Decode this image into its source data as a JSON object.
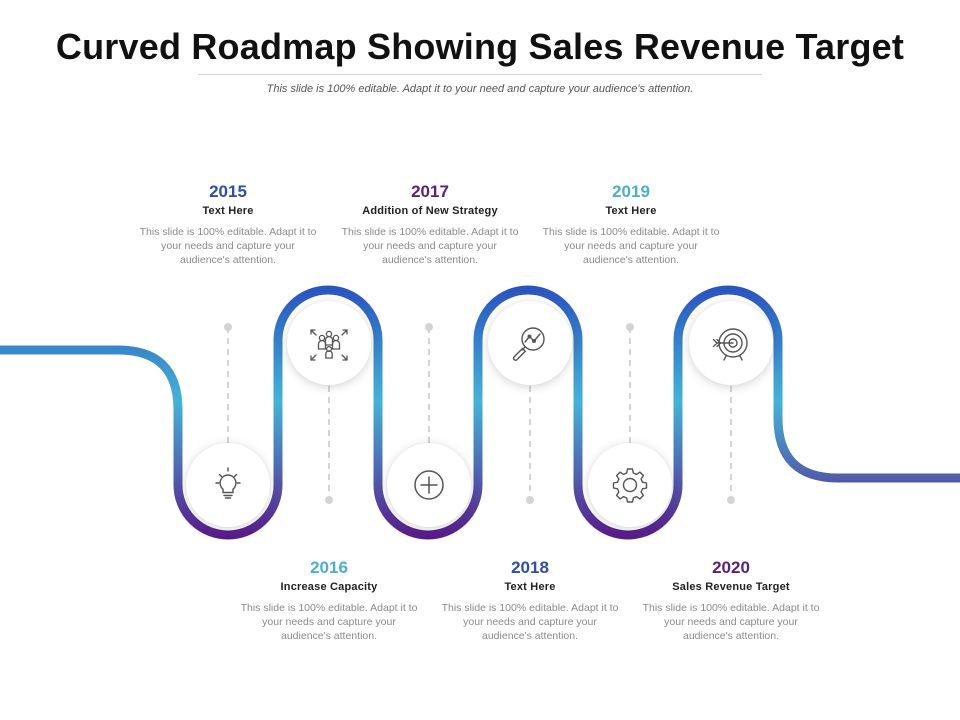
{
  "title": "Curved Roadmap Showing Sales Revenue Target",
  "subtitle": "This slide is 100% editable. Adapt it to your need and capture your audience's attention.",
  "colors": {
    "top_path": "#2a55c0",
    "mid_path": "#45b3d6",
    "bottom_path": "#5a1a8a",
    "year_blue": "#2e4fa8",
    "year_purple": "#5e1e7e",
    "year_cyan": "#4ab0d0"
  },
  "milestones": [
    {
      "year": "2015",
      "heading": "Text Here",
      "description": "This slide is 100% editable. Adapt it to your needs and capture your audience's attention.",
      "icon": "lightbulb-icon",
      "year_color": "#2e4fa8"
    },
    {
      "year": "2016",
      "heading": "Increase Capacity",
      "description": "This slide is 100% editable. Adapt it to your needs and capture your audience's attention.",
      "icon": "people-expand-icon",
      "year_color": "#4ab0d0"
    },
    {
      "year": "2017",
      "heading": "Addition of New Strategy",
      "description": "This slide is 100% editable. Adapt it to your needs and capture your audience's attention.",
      "icon": "plus-circle-icon",
      "year_color": "#5e1e7e"
    },
    {
      "year": "2018",
      "heading": "Text Here",
      "description": "This slide is 100% editable. Adapt it to your needs and capture your audience's attention.",
      "icon": "magnifier-chart-icon",
      "year_color": "#2e4fa8"
    },
    {
      "year": "2019",
      "heading": "Text Here",
      "description": "This slide is 100% editable. Adapt it to your needs and capture your audience's attention.",
      "icon": "gear-icon",
      "year_color": "#4ab0d0"
    },
    {
      "year": "2020",
      "heading": "Sales Revenue Target",
      "description": "This slide is 100% editable. Adapt it to your needs and capture your audience's attention.",
      "icon": "target-arrow-icon",
      "year_color": "#5e1e7e"
    }
  ]
}
